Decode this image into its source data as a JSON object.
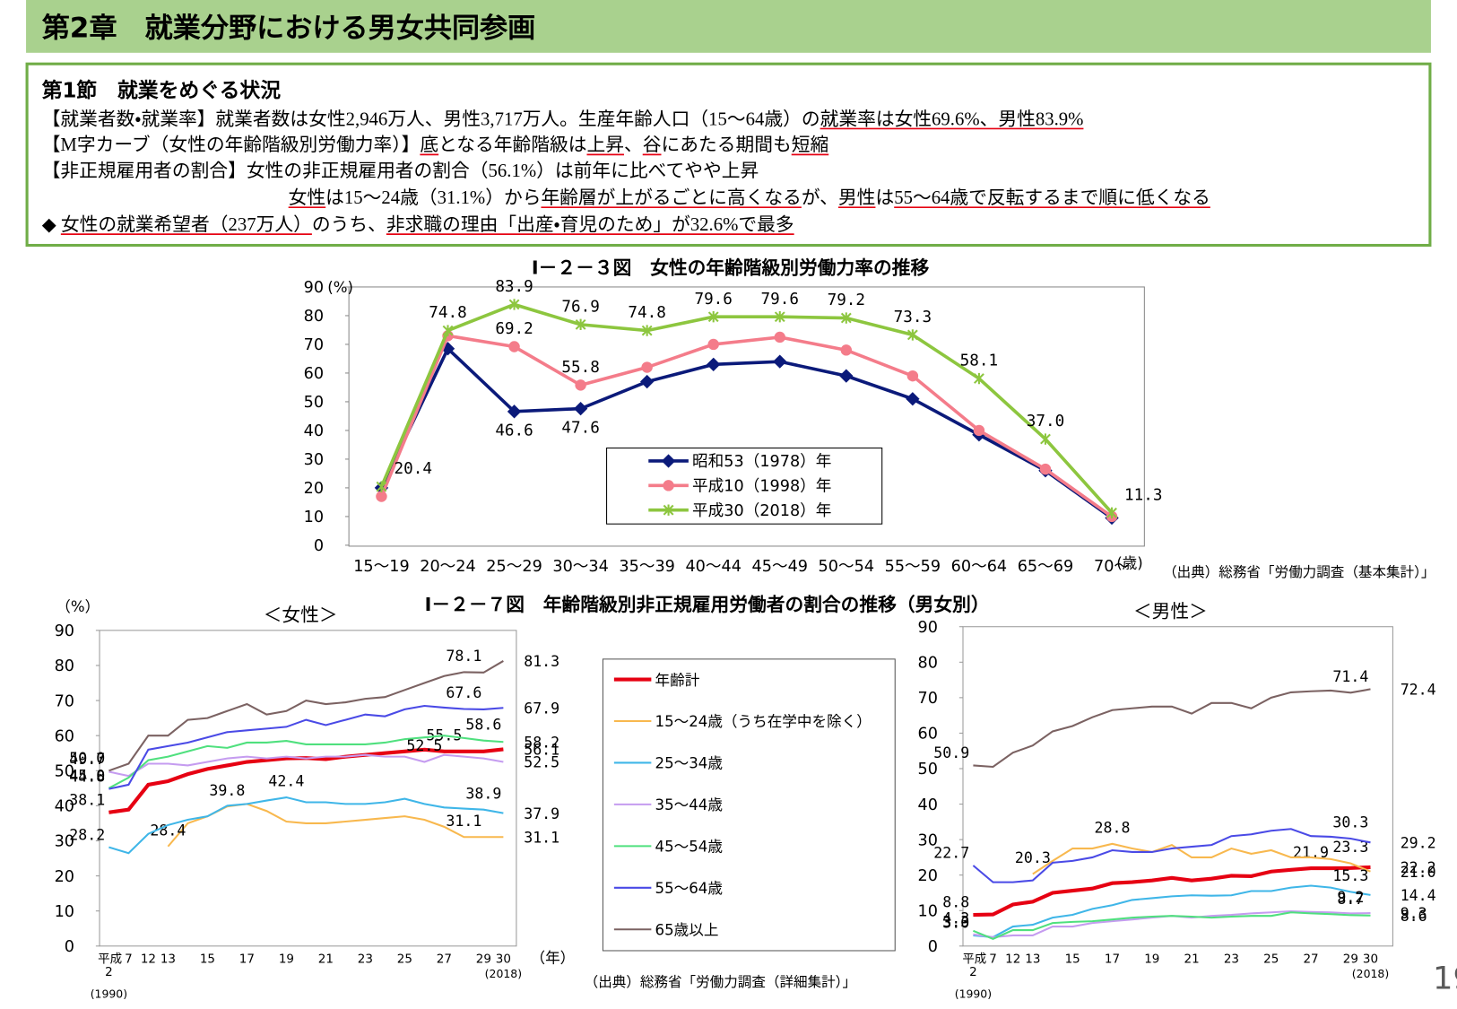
{
  "header": {
    "title": "第2章　就業分野における男女共同参画"
  },
  "summary": {
    "heading": "第1節　就業をめぐる状況",
    "lines": [
      [
        {
          "text": "【就業者数・就業率】就業者数は女性2,946万人、男性3,717万人。生産年齢人口（15～64歳）の",
          "underline": false
        },
        {
          "text": "就業率は女性69.6%、男性83.9%",
          "underline": true
        }
      ],
      [
        {
          "text": "【M字カーブ（女性の年齢階級別労働力率）】",
          "underline": false
        },
        {
          "text": "底",
          "underline": true
        },
        {
          "text": "となる年齢階級は",
          "underline": false
        },
        {
          "text": "上昇",
          "underline": true
        },
        {
          "text": "、",
          "underline": false
        },
        {
          "text": "谷",
          "underline": true
        },
        {
          "text": "にあたる期間も",
          "underline": false
        },
        {
          "text": "短縮",
          "underline": true
        }
      ],
      [
        {
          "text": "【非正規雇用者の割合】女性の非正規雇用者の割合（56.1%）は前年に比べてやや上昇",
          "underline": false
        }
      ],
      [
        {
          "text": "女性",
          "underline": true
        },
        {
          "text": "は15～24歳（31.1%）から",
          "underline": false
        },
        {
          "text": "年齢層が上がるごとに高くなる",
          "underline": true
        },
        {
          "text": "が、",
          "underline": false
        },
        {
          "text": "男性",
          "underline": true
        },
        {
          "text": "は",
          "underline": false
        },
        {
          "text": "55～64歳で反転するまで順に低くなる",
          "underline": true
        }
      ],
      [
        {
          "text": "◆ ",
          "underline": false
        },
        {
          "text": "女性の就業希望者（237万人）",
          "underline": true
        },
        {
          "text": "のうち、",
          "underline": false
        },
        {
          "text": "非求職の理由「出産・育児のため」が32.6%で最多",
          "underline": true
        }
      ]
    ]
  },
  "page_number": "19",
  "chart_data": [
    {
      "type": "line",
      "title": "Ⅰ－２－３図　女性の年齢階級別労働力率の推移",
      "y_label": "(%)",
      "x_unit": "(歳)",
      "source": "（出典）総務省「労働力調査（基本集計）」",
      "categories": [
        "15～19",
        "20～24",
        "25～29",
        "30～34",
        "35～39",
        "40～44",
        "45～49",
        "50～54",
        "55～59",
        "60～64",
        "65～69",
        "70～"
      ],
      "ylim": [
        0,
        90
      ],
      "yticks": [
        0,
        10,
        20,
        30,
        40,
        50,
        60,
        70,
        80,
        90
      ],
      "series": [
        {
          "name": "昭和53（1978）年",
          "color": "#0b1a7a",
          "marker": "diamond",
          "label_position": "below",
          "values": [
            20,
            68.5,
            46.6,
            47.6,
            57,
            63,
            64,
            59,
            51,
            38.5,
            26,
            9.5
          ],
          "value_labels": [
            null,
            null,
            "46.6",
            "47.6",
            null,
            null,
            null,
            null,
            null,
            null,
            null,
            null
          ]
        },
        {
          "name": "平成10（1998）年",
          "color": "#f47c8a",
          "marker": "circle",
          "label_position": "above",
          "values": [
            17,
            73,
            69.2,
            55.8,
            62,
            70,
            72.5,
            68,
            59,
            40,
            26.5,
            10
          ],
          "value_labels": [
            null,
            null,
            "69.2",
            "55.8",
            null,
            null,
            null,
            null,
            null,
            null,
            null,
            null
          ]
        },
        {
          "name": "平成30（2018）年",
          "color": "#8dc63f",
          "marker": "x",
          "label_position": "above",
          "values": [
            20.4,
            74.8,
            83.9,
            76.9,
            74.8,
            79.6,
            79.6,
            79.2,
            73.3,
            58.1,
            37.0,
            11.3
          ],
          "value_labels": [
            "20.4",
            "74.8",
            "83.9",
            "76.9",
            "74.8",
            "79.6",
            "79.6",
            "79.2",
            "73.3",
            "58.1",
            "37.0",
            "11.3"
          ]
        }
      ]
    },
    {
      "type": "line",
      "title": "Ⅰ－２－７図　年齢階級別非正規雇用労働者の割合の推移（男女別）",
      "y_label": "（%）",
      "x_unit": "（年）",
      "x_prefix": "平成",
      "x_notes": [
        "(1990)",
        "(2018)"
      ],
      "source": "（出典）総務省「労働力調査（詳細集計）」",
      "categories": [
        "2",
        "7",
        "12",
        "13",
        null,
        "15",
        null,
        "17",
        null,
        "19",
        null,
        "21",
        null,
        "23",
        null,
        "25",
        null,
        "27",
        null,
        "29",
        "30"
      ],
      "ylim": [
        0,
        90
      ],
      "yticks": [
        0,
        10,
        20,
        30,
        40,
        50,
        60,
        70,
        80,
        90
      ],
      "series": [
        {
          "name": "年齢計",
          "color": "#e60012"
        },
        {
          "name": "15～24歳（うち在学中を除く）",
          "color": "#f8b84e"
        },
        {
          "name": "25～34歳",
          "color": "#3fb6e8"
        },
        {
          "name": "35～44歳",
          "color": "#c59cf0"
        },
        {
          "name": "45～54歳",
          "color": "#4fe07e"
        },
        {
          "name": "55～64歳",
          "color": "#4a4ae6"
        },
        {
          "name": "65歳以上",
          "color": "#7b6262"
        }
      ],
      "panels": [
        {
          "subtitle": "＜女性＞",
          "values": [
            [
              38.1,
              38.9,
              46,
              47,
              49,
              50.5,
              51.5,
              52.5,
              53,
              53.5,
              53.6,
              53.3,
              54,
              54.5,
              55,
              55.5,
              56,
              55.5,
              55.5,
              55.5,
              56.1
            ],
            [
              null,
              null,
              null,
              28.4,
              35,
              37,
              39.8,
              40.5,
              38.5,
              35.5,
              35,
              35,
              35.5,
              36,
              36.5,
              37,
              36,
              34,
              31.1,
              31.1,
              31.1
            ],
            [
              28.2,
              26.5,
              32,
              34.5,
              36,
              37,
              40,
              40.5,
              41.5,
              42.4,
              41,
              41,
              40.5,
              40.5,
              41,
              42,
              40.5,
              39.5,
              39.2,
              38.9,
              37.9
            ],
            [
              49.7,
              48.5,
              52,
              52,
              51.5,
              52.5,
              53.5,
              54,
              53.5,
              54,
              53.5,
              54,
              54,
              54.5,
              54,
              54,
              52.5,
              54.5,
              54,
              53.5,
              52.5
            ],
            [
              45.0,
              48,
              53,
              54,
              55.5,
              57,
              56.5,
              58,
              58,
              58.5,
              57.5,
              57.5,
              57.5,
              57.5,
              58,
              59,
              59.5,
              60,
              59.3,
              58.6,
              58.2
            ],
            [
              44.8,
              46,
              56,
              57,
              58,
              59.5,
              61,
              61.5,
              62,
              62.5,
              64.5,
              63,
              64.5,
              66,
              65.5,
              67.5,
              68.5,
              68,
              67.6,
              67.5,
              67.9
            ],
            [
              50.0,
              52,
              60,
              60,
              64.5,
              65,
              67,
              69,
              66,
              67,
              70,
              69,
              69.5,
              70.5,
              71,
              73,
              75,
              77,
              78.1,
              78,
              81.3
            ]
          ],
          "value_labels": [
            [
              "38.1",
              null,
              null,
              null,
              null,
              null,
              null,
              null,
              null,
              null,
              null,
              null,
              null,
              null,
              null,
              null,
              null,
              "55.5",
              null,
              null,
              "56.1"
            ],
            [
              null,
              null,
              null,
              "28.4",
              null,
              null,
              "39.8",
              null,
              null,
              null,
              null,
              null,
              null,
              null,
              null,
              null,
              null,
              null,
              "31.1",
              null,
              "31.1"
            ],
            [
              "28.2",
              null,
              null,
              null,
              null,
              null,
              null,
              null,
              null,
              "42.4",
              null,
              null,
              null,
              null,
              null,
              null,
              null,
              null,
              null,
              "38.9",
              "37.9"
            ],
            [
              "49.7",
              null,
              null,
              null,
              null,
              null,
              null,
              null,
              null,
              null,
              null,
              null,
              null,
              null,
              null,
              null,
              "52.5",
              null,
              null,
              null,
              "52.5"
            ],
            [
              "45.0",
              null,
              null,
              null,
              null,
              null,
              null,
              null,
              null,
              null,
              null,
              null,
              null,
              null,
              null,
              null,
              null,
              null,
              null,
              "58.6",
              "58.2"
            ],
            [
              "44.8",
              null,
              null,
              null,
              null,
              null,
              null,
              null,
              null,
              null,
              null,
              null,
              null,
              null,
              null,
              null,
              null,
              null,
              "67.6",
              null,
              "67.9"
            ],
            [
              "50.0",
              null,
              null,
              null,
              null,
              null,
              null,
              null,
              null,
              null,
              null,
              null,
              null,
              null,
              null,
              null,
              null,
              null,
              "78.1",
              null,
              "81.3"
            ]
          ]
        },
        {
          "subtitle": "＜男性＞",
          "values": [
            [
              8.8,
              8.9,
              11.7,
              12.5,
              15.0,
              15.6,
              16.2,
              17.7,
              18.0,
              18.5,
              19.2,
              18.5,
              19.0,
              19.8,
              19.7,
              21.0,
              21.5,
              21.9,
              21.9,
              22.0,
              22.2
            ],
            [
              null,
              null,
              null,
              20.3,
              24,
              27.5,
              27.5,
              28.8,
              27.5,
              26.5,
              28.5,
              25,
              25,
              27.5,
              26,
              27,
              25,
              25,
              24.5,
              23.3,
              21.0
            ],
            [
              3.0,
              2.5,
              5.5,
              6.0,
              8.0,
              8.8,
              10.5,
              11.5,
              13.0,
              13.5,
              14.0,
              14.3,
              14.2,
              14.3,
              15.5,
              15.5,
              16.5,
              17.0,
              16.5,
              15.3,
              14.4
            ],
            [
              3.3,
              2.5,
              3.0,
              3.0,
              5.5,
              5.5,
              6.5,
              7.0,
              7.5,
              8.0,
              8.5,
              8.0,
              8.5,
              8.8,
              9.2,
              9.5,
              9.8,
              9.6,
              9.5,
              9.2,
              9.3
            ],
            [
              4.3,
              2.0,
              4.5,
              4.5,
              6.5,
              6.8,
              7.0,
              7.5,
              8.0,
              8.3,
              8.5,
              8.3,
              8.0,
              8.3,
              8.5,
              8.5,
              9.5,
              9.2,
              9.0,
              8.7,
              8.6
            ],
            [
              22.7,
              18,
              18,
              18.5,
              23.5,
              24,
              25,
              27,
              26.5,
              26.5,
              27.5,
              28,
              28.5,
              31,
              31.5,
              32.5,
              33,
              31,
              30.8,
              30.3,
              29.2
            ],
            [
              50.9,
              50.5,
              54.5,
              56.5,
              60.5,
              62,
              64.5,
              66.5,
              67,
              67.5,
              67.5,
              65.5,
              68.5,
              68.5,
              67,
              70,
              71.5,
              71.8,
              72,
              71.4,
              72.4
            ]
          ],
          "value_labels": [
            [
              "8.8",
              null,
              null,
              null,
              null,
              null,
              null,
              null,
              null,
              null,
              null,
              null,
              null,
              null,
              null,
              null,
              null,
              "21.9",
              null,
              null,
              "22.2"
            ],
            [
              null,
              null,
              null,
              "20.3",
              null,
              null,
              null,
              "28.8",
              null,
              null,
              null,
              null,
              null,
              null,
              null,
              null,
              null,
              null,
              null,
              "23.3",
              "21.0"
            ],
            [
              "3.0",
              null,
              null,
              null,
              null,
              null,
              null,
              null,
              null,
              null,
              null,
              null,
              null,
              null,
              null,
              null,
              null,
              null,
              null,
              "15.3",
              "14.4"
            ],
            [
              "3.3",
              null,
              null,
              null,
              null,
              null,
              null,
              null,
              null,
              null,
              null,
              null,
              null,
              null,
              null,
              null,
              null,
              null,
              null,
              "9.2",
              "9.3"
            ],
            [
              "4.3",
              null,
              null,
              null,
              null,
              null,
              null,
              null,
              null,
              null,
              null,
              null,
              null,
              null,
              null,
              null,
              null,
              null,
              null,
              "8.7",
              "8.6"
            ],
            [
              "22.7",
              null,
              null,
              null,
              null,
              null,
              null,
              null,
              null,
              null,
              null,
              null,
              null,
              null,
              null,
              null,
              null,
              null,
              null,
              "30.3",
              "29.2"
            ],
            [
              "50.9",
              null,
              null,
              null,
              null,
              null,
              null,
              null,
              null,
              null,
              null,
              null,
              null,
              null,
              null,
              null,
              null,
              null,
              null,
              "71.4",
              "72.4"
            ]
          ]
        }
      ]
    }
  ]
}
